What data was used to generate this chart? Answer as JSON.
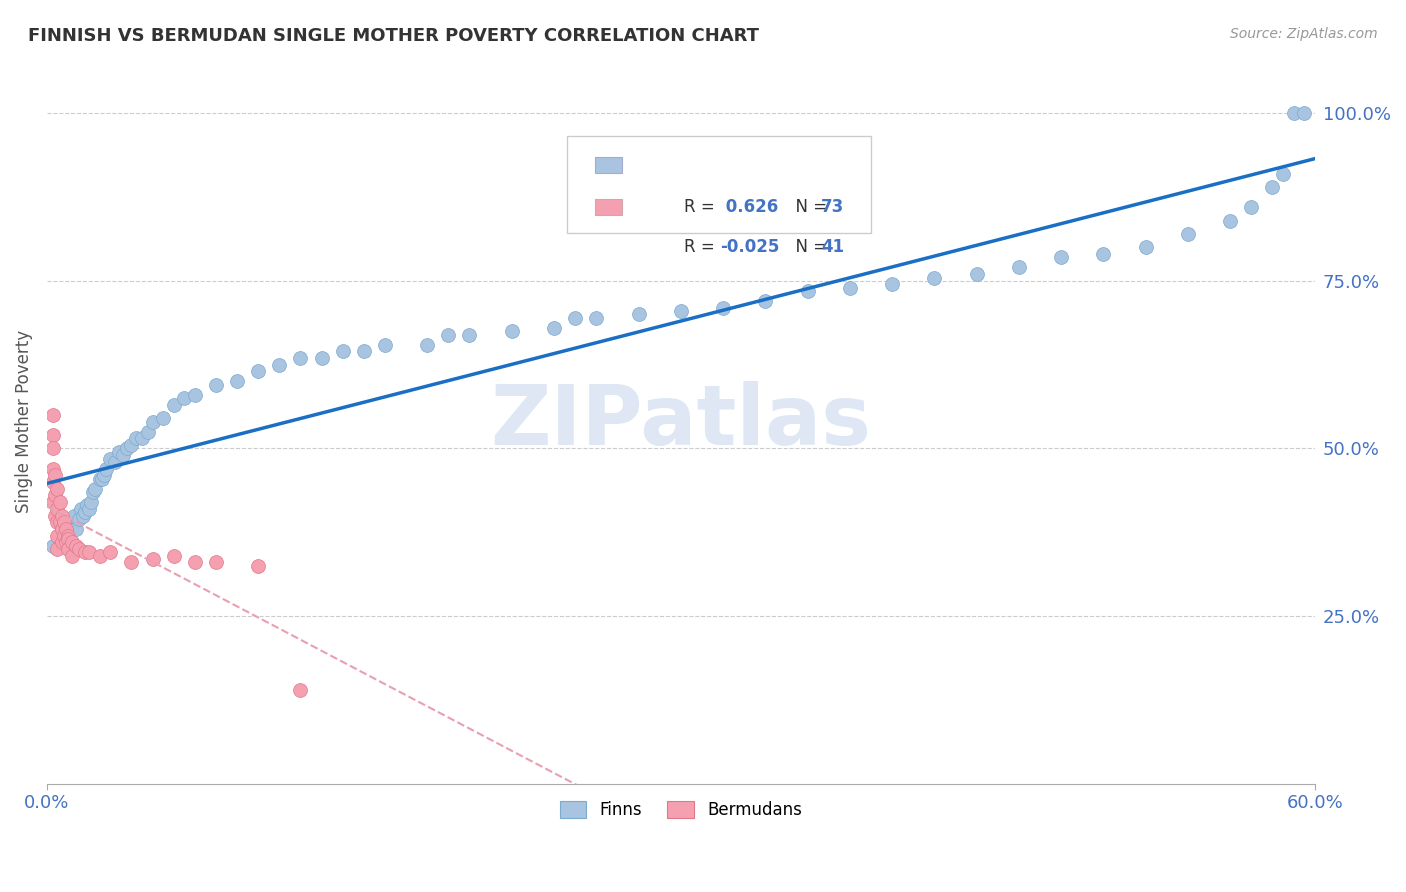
{
  "title": "FINNISH VS BERMUDAN SINGLE MOTHER POVERTY CORRELATION CHART",
  "source": "Source: ZipAtlas.com",
  "ylabel": "Single Mother Poverty",
  "xlim": [
    0.0,
    0.6
  ],
  "ylim": [
    0.0,
    1.08
  ],
  "ytick_vals": [
    0.25,
    0.5,
    0.75,
    1.0
  ],
  "ytick_labels": [
    "25.0%",
    "50.0%",
    "75.0%",
    "100.0%"
  ],
  "xtick_vals": [
    0.0,
    0.6
  ],
  "xtick_labels": [
    "0.0%",
    "60.0%"
  ],
  "finns_color": "#a8c4e0",
  "finns_edge_color": "#7aaace",
  "bermudans_color": "#f4a0b0",
  "bermudans_edge_color": "#e07888",
  "finns_line_color": "#1a6fc4",
  "bermudans_line_color": "#e8a0b0",
  "grid_color": "#cccccc",
  "watermark": "ZIPatlas",
  "watermark_color": "#c8d8ec",
  "legend_r1_label": "R = ",
  "legend_r1_val": " 0.626",
  "legend_n1_label": "N = ",
  "legend_n1_val": "73",
  "legend_r2_label": "R = ",
  "legend_r2_val": "-0.025",
  "legend_n2_label": "N = ",
  "legend_n2_val": "41",
  "finns_x": [
    0.003,
    0.006,
    0.007,
    0.008,
    0.009,
    0.01,
    0.01,
    0.012,
    0.013,
    0.014,
    0.015,
    0.016,
    0.017,
    0.018,
    0.019,
    0.02,
    0.021,
    0.022,
    0.023,
    0.025,
    0.026,
    0.027,
    0.028,
    0.03,
    0.032,
    0.034,
    0.036,
    0.038,
    0.04,
    0.042,
    0.045,
    0.048,
    0.05,
    0.055,
    0.06,
    0.065,
    0.07,
    0.08,
    0.09,
    0.1,
    0.11,
    0.12,
    0.13,
    0.14,
    0.15,
    0.16,
    0.18,
    0.19,
    0.2,
    0.22,
    0.24,
    0.25,
    0.26,
    0.28,
    0.3,
    0.32,
    0.34,
    0.36,
    0.38,
    0.4,
    0.42,
    0.44,
    0.46,
    0.48,
    0.5,
    0.52,
    0.54,
    0.56,
    0.57,
    0.58,
    0.585,
    0.59,
    0.595
  ],
  "finns_y": [
    0.355,
    0.36,
    0.37,
    0.385,
    0.375,
    0.38,
    0.365,
    0.39,
    0.4,
    0.38,
    0.395,
    0.41,
    0.4,
    0.405,
    0.415,
    0.41,
    0.42,
    0.435,
    0.44,
    0.455,
    0.455,
    0.46,
    0.47,
    0.485,
    0.48,
    0.495,
    0.49,
    0.5,
    0.505,
    0.515,
    0.515,
    0.525,
    0.54,
    0.545,
    0.565,
    0.575,
    0.58,
    0.595,
    0.6,
    0.615,
    0.625,
    0.635,
    0.635,
    0.645,
    0.645,
    0.655,
    0.655,
    0.67,
    0.67,
    0.675,
    0.68,
    0.695,
    0.695,
    0.7,
    0.705,
    0.71,
    0.72,
    0.735,
    0.74,
    0.745,
    0.755,
    0.76,
    0.77,
    0.785,
    0.79,
    0.8,
    0.82,
    0.84,
    0.86,
    0.89,
    0.91,
    1.0,
    1.0
  ],
  "bermudans_x": [
    0.003,
    0.003,
    0.003,
    0.003,
    0.003,
    0.003,
    0.004,
    0.004,
    0.004,
    0.005,
    0.005,
    0.005,
    0.005,
    0.005,
    0.006,
    0.006,
    0.007,
    0.007,
    0.007,
    0.008,
    0.008,
    0.009,
    0.009,
    0.01,
    0.01,
    0.01,
    0.012,
    0.012,
    0.014,
    0.015,
    0.018,
    0.02,
    0.025,
    0.03,
    0.04,
    0.05,
    0.06,
    0.07,
    0.08,
    0.1,
    0.12
  ],
  "bermudans_y": [
    0.55,
    0.52,
    0.5,
    0.47,
    0.45,
    0.42,
    0.46,
    0.43,
    0.4,
    0.44,
    0.41,
    0.39,
    0.37,
    0.35,
    0.42,
    0.39,
    0.4,
    0.38,
    0.36,
    0.39,
    0.37,
    0.38,
    0.36,
    0.37,
    0.365,
    0.35,
    0.36,
    0.34,
    0.355,
    0.35,
    0.345,
    0.345,
    0.34,
    0.345,
    0.33,
    0.335,
    0.34,
    0.33,
    0.33,
    0.325,
    0.14
  ]
}
